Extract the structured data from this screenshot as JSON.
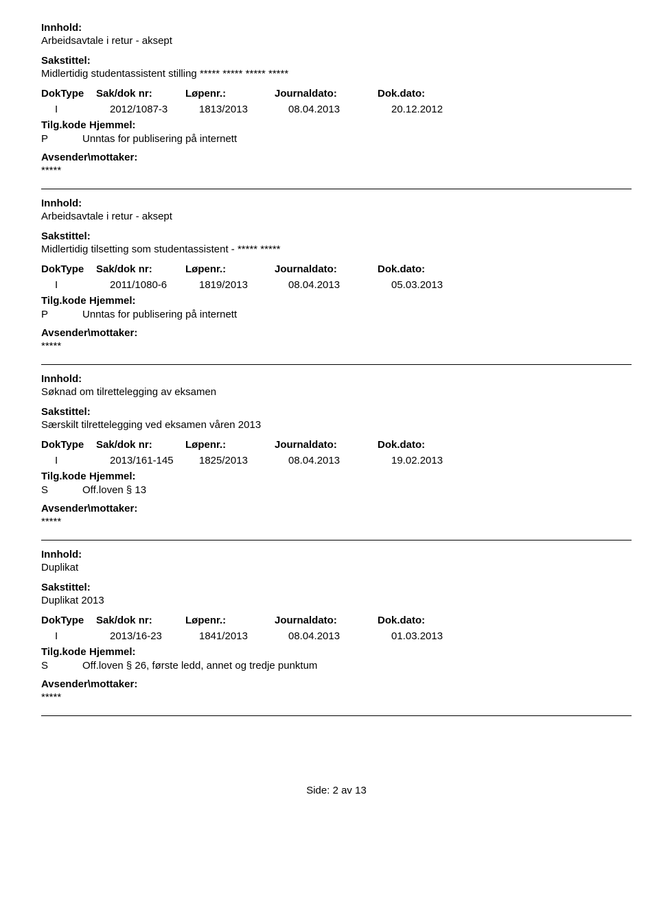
{
  "labels": {
    "innhold": "Innhold:",
    "sakstittel": "Sakstittel:",
    "doktype": "DokType",
    "sakdoknr": "Sak/dok nr:",
    "lopenr": "Løpenr.:",
    "journaldato": "Journaldato:",
    "dokdato": "Dok.dato:",
    "tilgkode": "Tilg.kode",
    "hjemmel": "Hjemmel:",
    "avsender": "Avsender\\mottaker:"
  },
  "entries": [
    {
      "innhold": "Arbeidsavtale i retur - aksept",
      "sakstittel": "Midlertidig studentassistent stilling ***** ***** ***** *****",
      "doktype": "I",
      "sakdoknr": "2012/1087-3",
      "lopenr": "1813/2013",
      "journaldato": "08.04.2013",
      "dokdato": "20.12.2012",
      "tilgkode": "P",
      "hjemmel": "Unntas for publisering på internett",
      "avsender": "*****"
    },
    {
      "innhold": "Arbeidsavtale i retur - aksept",
      "sakstittel": "Midlertidig tilsetting som studentassistent - ***** *****",
      "doktype": "I",
      "sakdoknr": "2011/1080-6",
      "lopenr": "1819/2013",
      "journaldato": "08.04.2013",
      "dokdato": "05.03.2013",
      "tilgkode": "P",
      "hjemmel": "Unntas for publisering på internett",
      "avsender": "*****"
    },
    {
      "innhold": "Søknad om tilrettelegging av eksamen",
      "sakstittel": "Særskilt tilrettelegging ved eksamen våren 2013",
      "doktype": "I",
      "sakdoknr": "2013/161-145",
      "lopenr": "1825/2013",
      "journaldato": "08.04.2013",
      "dokdato": "19.02.2013",
      "tilgkode": "S",
      "hjemmel": "Off.loven § 13",
      "avsender": "*****"
    },
    {
      "innhold": "Duplikat",
      "sakstittel": "Duplikat 2013",
      "doktype": "I",
      "sakdoknr": "2013/16-23",
      "lopenr": "1841/2013",
      "journaldato": "08.04.2013",
      "dokdato": "01.03.2013",
      "tilgkode": "S",
      "hjemmel": "Off.loven § 26, første ledd, annet og tredje punktum",
      "avsender": "*****"
    }
  ],
  "footer": {
    "side_label": "Side:",
    "page_current": "2",
    "av_label": "av",
    "page_total": "13"
  }
}
